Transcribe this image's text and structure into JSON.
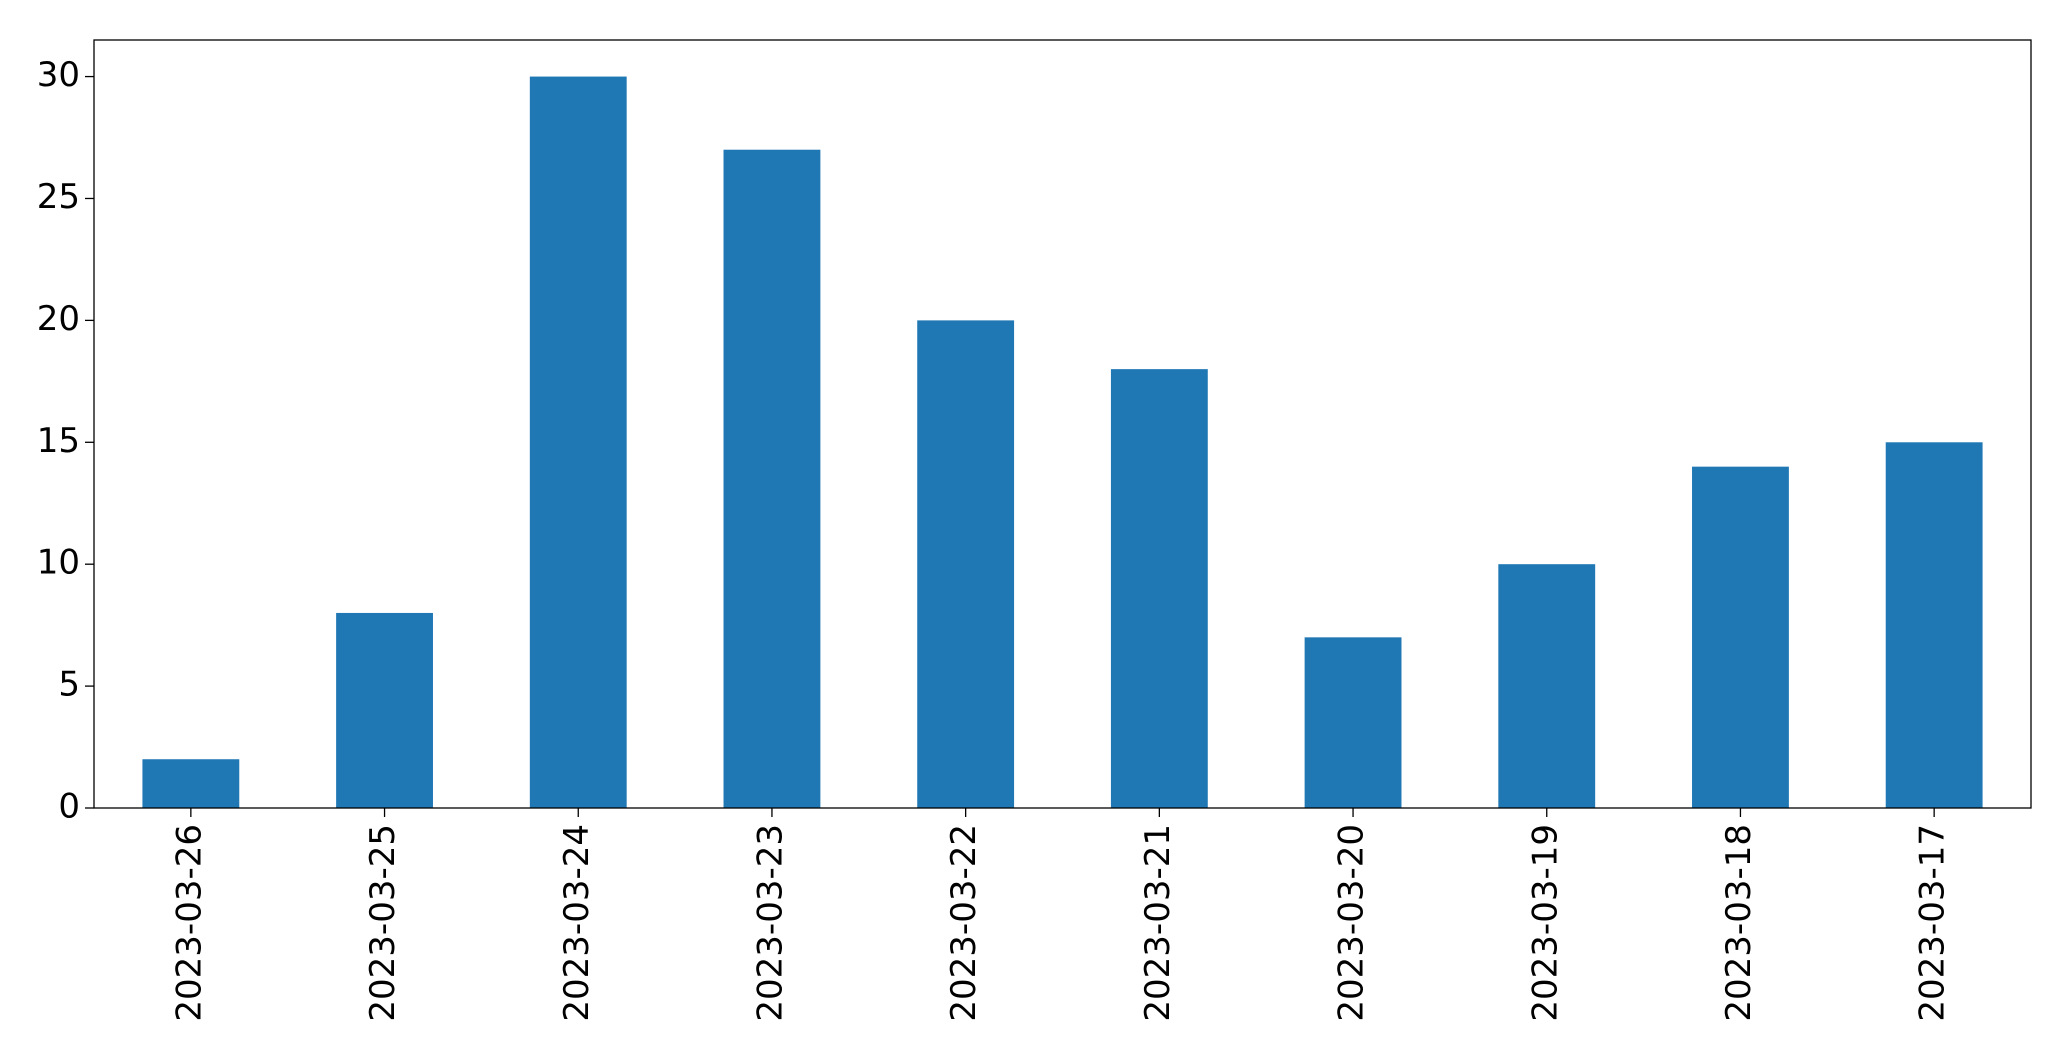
{
  "chart_data": {
    "type": "bar",
    "categories": [
      "2023-03-26",
      "2023-03-25",
      "2023-03-24",
      "2023-03-23",
      "2023-03-22",
      "2023-03-21",
      "2023-03-20",
      "2023-03-19",
      "2023-03-18",
      "2023-03-17"
    ],
    "values": [
      2,
      8,
      30,
      27,
      20,
      18,
      7,
      10,
      14,
      15
    ],
    "color": "#1f77b4",
    "ylim": [
      0,
      31.5
    ],
    "yticks": [
      0,
      5,
      10,
      15,
      20,
      25,
      30
    ],
    "grid": false
  }
}
